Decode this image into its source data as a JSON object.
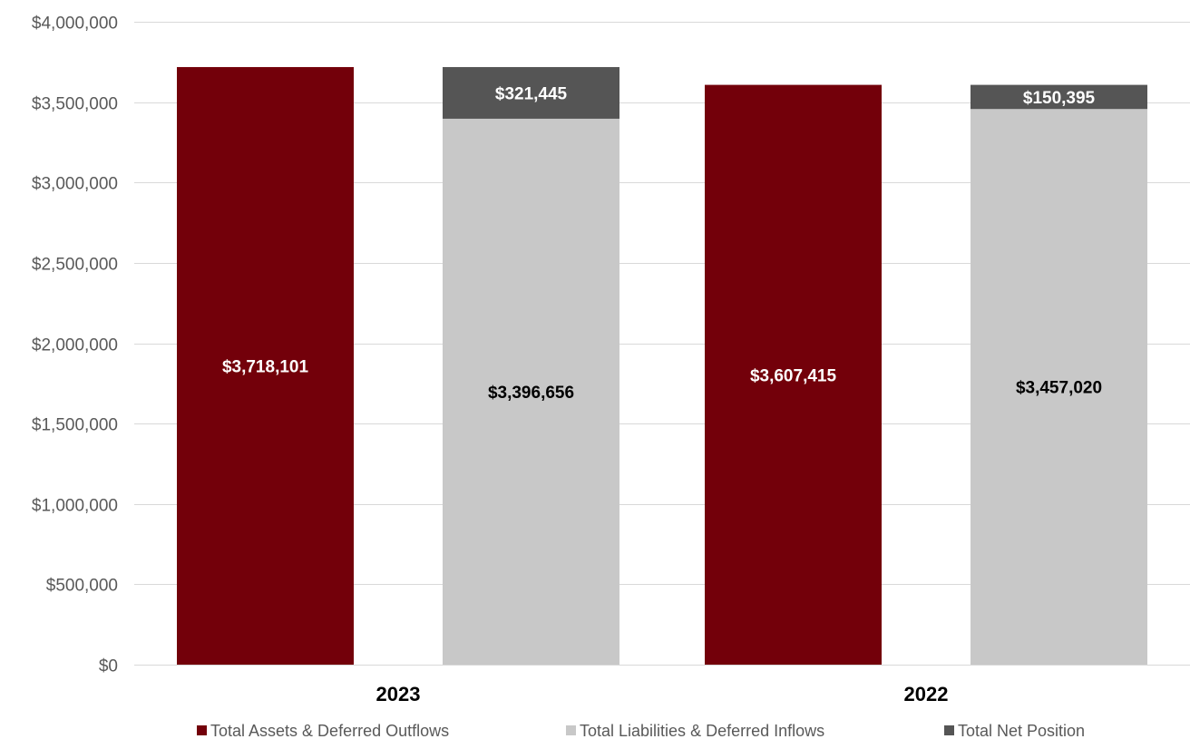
{
  "chart_data": {
    "type": "bar",
    "stacked_groups": true,
    "categories": [
      "2023",
      "2022"
    ],
    "series": [
      {
        "name": "Total Assets & Deferred Outflows",
        "stack": "assets",
        "color": "#73000a",
        "label_color": "#ffffff",
        "values": [
          3718101,
          3607415
        ],
        "labels": [
          "$3,718,101",
          "$3,607,415"
        ]
      },
      {
        "name": "Total Liabilities & Deferred Inflows",
        "stack": "liabilities",
        "color": "#c8c8c8",
        "label_color": "#000000",
        "values": [
          3396656,
          3457020
        ],
        "labels": [
          "$3,396,656",
          "$3,457,020"
        ]
      },
      {
        "name": "Total Net Position",
        "stack": "liabilities",
        "color": "#555555",
        "label_color": "#ffffff",
        "values": [
          321445,
          150395
        ],
        "labels": [
          "$321,445",
          "$150,395"
        ]
      }
    ],
    "ylim": [
      0,
      4000000
    ],
    "yticks": [
      0,
      500000,
      1000000,
      1500000,
      2000000,
      2500000,
      3000000,
      3500000,
      4000000
    ],
    "ytick_labels": [
      "$0",
      "$500,000",
      "$1,000,000",
      "$1,500,000",
      "$2,000,000",
      "$2,500,000",
      "$3,000,000",
      "$3,500,000",
      "$4,000,000"
    ],
    "grid": true,
    "legend_position": "bottom",
    "title": "",
    "xlabel": "",
    "ylabel": ""
  }
}
